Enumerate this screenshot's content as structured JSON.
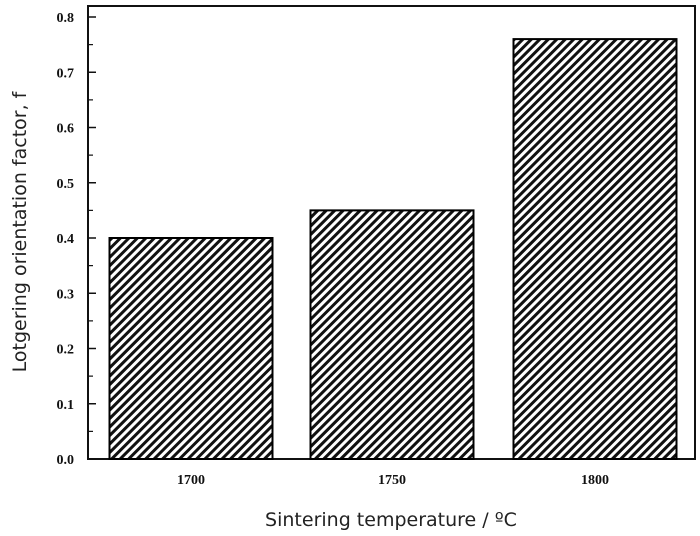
{
  "chart_data": {
    "type": "bar",
    "categories": [
      "1700",
      "1750",
      "1800"
    ],
    "values": [
      0.4,
      0.45,
      0.76
    ],
    "xlabel": "Sintering temperature / ºC",
    "ylabel": "Lotgering orientation factor, f",
    "ylim": [
      0,
      0.8
    ],
    "yticks": [
      "0.0",
      "0.1",
      "0.2",
      "0.3",
      "0.4",
      "0.5",
      "0.6",
      "0.7",
      "0.8"
    ],
    "grid": false,
    "bar_fill": "diagonal hatch",
    "colors": {
      "bar_edge": "#000000",
      "hatch": "#000000"
    }
  }
}
